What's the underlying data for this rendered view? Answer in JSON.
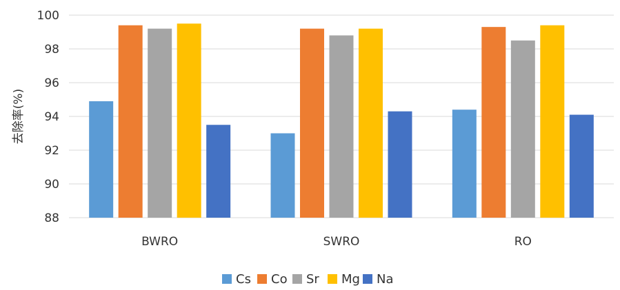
{
  "chart_data": {
    "type": "bar",
    "categories": [
      "BWRO",
      "SWRO",
      "RO"
    ],
    "series": [
      {
        "name": "Cs",
        "color": "#5b9bd5",
        "values": [
          94.9,
          93.0,
          94.4
        ]
      },
      {
        "name": "Co",
        "color": "#ed7d31",
        "values": [
          99.4,
          99.2,
          99.3
        ]
      },
      {
        "name": "Sr",
        "color": "#a5a5a5",
        "values": [
          99.2,
          98.8,
          98.5
        ]
      },
      {
        "name": "Mg",
        "color": "#ffc000",
        "values": [
          99.5,
          99.2,
          99.4
        ]
      },
      {
        "name": "Na",
        "color": "#4472c4",
        "values": [
          93.5,
          94.3,
          94.1
        ]
      }
    ],
    "ylabel": "去除率(%)",
    "ylim": [
      88,
      100
    ],
    "yticks": [
      88,
      90,
      92,
      94,
      96,
      98,
      100
    ],
    "grid": true,
    "legend_position": "bottom"
  }
}
